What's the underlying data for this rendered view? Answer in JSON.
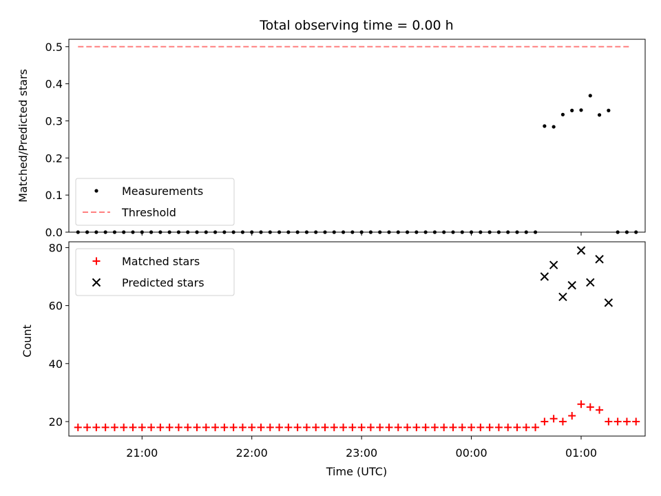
{
  "chart_data": {
    "title": "Total observing time = 0.00 h",
    "xlabel": "Time (UTC)",
    "x_ticks": [
      "21:00",
      "22:00",
      "23:00",
      "00:00",
      "01:00"
    ],
    "x_tick_values": [
      0,
      60,
      120,
      180,
      240
    ],
    "x_unit": "minutes after 21:00 UTC",
    "panels": [
      {
        "type": "scatter",
        "ylabel": "Matched/Predicted stars",
        "ylim": [
          0,
          0.52
        ],
        "y_ticks": [
          "0.0",
          "0.1",
          "0.2",
          "0.3",
          "0.4",
          "0.5"
        ],
        "y_tick_values": [
          0,
          0.1,
          0.2,
          0.3,
          0.4,
          0.5
        ],
        "legend": {
          "placement": "lower-left"
        },
        "series": [
          {
            "name": "Measurements",
            "marker": "dot",
            "color": "#000000",
            "points": [
              [
                -35,
                0
              ],
              [
                -30,
                0
              ],
              [
                -25,
                0
              ],
              [
                -20,
                0
              ],
              [
                -15,
                0
              ],
              [
                -10,
                0
              ],
              [
                -5,
                0
              ],
              [
                0,
                0
              ],
              [
                5,
                0
              ],
              [
                10,
                0
              ],
              [
                15,
                0
              ],
              [
                20,
                0
              ],
              [
                25,
                0
              ],
              [
                30,
                0
              ],
              [
                35,
                0
              ],
              [
                40,
                0
              ],
              [
                45,
                0
              ],
              [
                50,
                0
              ],
              [
                55,
                0
              ],
              [
                60,
                0
              ],
              [
                65,
                0
              ],
              [
                70,
                0
              ],
              [
                75,
                0
              ],
              [
                80,
                0
              ],
              [
                85,
                0
              ],
              [
                90,
                0
              ],
              [
                95,
                0
              ],
              [
                100,
                0
              ],
              [
                105,
                0
              ],
              [
                110,
                0
              ],
              [
                115,
                0
              ],
              [
                120,
                0
              ],
              [
                125,
                0
              ],
              [
                130,
                0
              ],
              [
                135,
                0
              ],
              [
                140,
                0
              ],
              [
                145,
                0
              ],
              [
                150,
                0
              ],
              [
                155,
                0
              ],
              [
                160,
                0
              ],
              [
                165,
                0
              ],
              [
                170,
                0
              ],
              [
                175,
                0
              ],
              [
                180,
                0
              ],
              [
                185,
                0
              ],
              [
                190,
                0
              ],
              [
                195,
                0
              ],
              [
                200,
                0
              ],
              [
                205,
                0
              ],
              [
                210,
                0
              ],
              [
                215,
                0
              ],
              [
                220,
                0.286
              ],
              [
                225,
                0.284
              ],
              [
                230,
                0.317
              ],
              [
                235,
                0.328
              ],
              [
                240,
                0.329
              ],
              [
                245,
                0.368
              ],
              [
                250,
                0.316
              ],
              [
                255,
                0.328
              ],
              [
                260,
                0
              ],
              [
                265,
                0
              ],
              [
                270,
                0
              ]
            ]
          },
          {
            "name": "Threshold",
            "line_style": "dashed",
            "color": "#ff7f7f",
            "points": [
              [
                -35,
                0.5
              ],
              [
                267,
                0.5
              ]
            ]
          }
        ]
      },
      {
        "type": "scatter",
        "ylabel": "Count",
        "ylim": [
          15,
          82
        ],
        "y_ticks": [
          "20",
          "40",
          "60",
          "80"
        ],
        "y_tick_values": [
          20,
          40,
          60,
          80
        ],
        "legend": {
          "placement": "upper-left"
        },
        "series": [
          {
            "name": "Matched stars",
            "marker": "plus",
            "color": "#ff0000",
            "points": [
              [
                -35,
                18
              ],
              [
                -30,
                18
              ],
              [
                -25,
                18
              ],
              [
                -20,
                18
              ],
              [
                -15,
                18
              ],
              [
                -10,
                18
              ],
              [
                -5,
                18
              ],
              [
                0,
                18
              ],
              [
                5,
                18
              ],
              [
                10,
                18
              ],
              [
                15,
                18
              ],
              [
                20,
                18
              ],
              [
                25,
                18
              ],
              [
                30,
                18
              ],
              [
                35,
                18
              ],
              [
                40,
                18
              ],
              [
                45,
                18
              ],
              [
                50,
                18
              ],
              [
                55,
                18
              ],
              [
                60,
                18
              ],
              [
                65,
                18
              ],
              [
                70,
                18
              ],
              [
                75,
                18
              ],
              [
                80,
                18
              ],
              [
                85,
                18
              ],
              [
                90,
                18
              ],
              [
                95,
                18
              ],
              [
                100,
                18
              ],
              [
                105,
                18
              ],
              [
                110,
                18
              ],
              [
                115,
                18
              ],
              [
                120,
                18
              ],
              [
                125,
                18
              ],
              [
                130,
                18
              ],
              [
                135,
                18
              ],
              [
                140,
                18
              ],
              [
                145,
                18
              ],
              [
                150,
                18
              ],
              [
                155,
                18
              ],
              [
                160,
                18
              ],
              [
                165,
                18
              ],
              [
                170,
                18
              ],
              [
                175,
                18
              ],
              [
                180,
                18
              ],
              [
                185,
                18
              ],
              [
                190,
                18
              ],
              [
                195,
                18
              ],
              [
                200,
                18
              ],
              [
                205,
                18
              ],
              [
                210,
                18
              ],
              [
                215,
                18
              ],
              [
                220,
                20
              ],
              [
                225,
                21
              ],
              [
                230,
                20
              ],
              [
                235,
                22
              ],
              [
                240,
                26
              ],
              [
                245,
                25
              ],
              [
                250,
                24
              ],
              [
                255,
                20
              ],
              [
                260,
                20
              ],
              [
                265,
                20
              ],
              [
                270,
                20
              ]
            ]
          },
          {
            "name": "Predicted stars",
            "marker": "x",
            "color": "#000000",
            "points": [
              [
                220,
                70
              ],
              [
                225,
                74
              ],
              [
                230,
                63
              ],
              [
                235,
                67
              ],
              [
                240,
                79
              ],
              [
                245,
                68
              ],
              [
                250,
                76
              ],
              [
                255,
                61
              ]
            ]
          }
        ]
      }
    ]
  }
}
